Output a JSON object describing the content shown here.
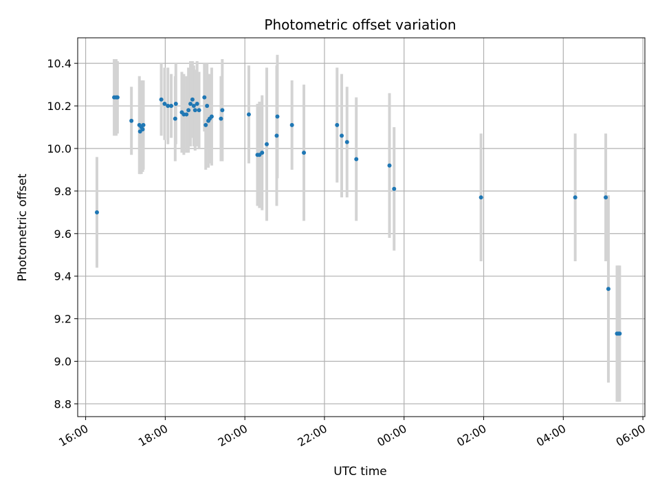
{
  "chart_data": {
    "type": "scatter",
    "title": "Photometric offset variation",
    "xlabel": "UTC time",
    "ylabel": "Photometric offset",
    "x_axis": {
      "min_hours": 15.8,
      "max_hours": 30.05,
      "ticks": [
        {
          "label": "16:00",
          "hours": 16
        },
        {
          "label": "18:00",
          "hours": 18
        },
        {
          "label": "20:00",
          "hours": 20
        },
        {
          "label": "22:00",
          "hours": 22
        },
        {
          "label": "00:00",
          "hours": 24
        },
        {
          "label": "02:00",
          "hours": 26
        },
        {
          "label": "04:00",
          "hours": 28
        },
        {
          "label": "06:00",
          "hours": 30
        }
      ]
    },
    "y_axis": {
      "min": 8.74,
      "max": 10.52,
      "ticks": [
        "8.8",
        "9.0",
        "9.2",
        "9.4",
        "9.6",
        "9.8",
        "10.0",
        "10.2",
        "10.4"
      ]
    },
    "grid": true,
    "point_color": "#1f77b4",
    "errorbar_color": "#d3d3d3",
    "points": [
      {
        "t": "16:17",
        "y": 9.7,
        "err": 0.26
      },
      {
        "t": "16:43",
        "y": 10.24,
        "err": 0.18
      },
      {
        "t": "16:46",
        "y": 10.24,
        "err": 0.18
      },
      {
        "t": "16:48",
        "y": 10.24,
        "err": 0.17
      },
      {
        "t": "17:09",
        "y": 10.13,
        "err": 0.16
      },
      {
        "t": "17:21",
        "y": 10.11,
        "err": 0.23
      },
      {
        "t": "17:22",
        "y": 10.08,
        "err": 0.2
      },
      {
        "t": "17:24",
        "y": 10.1,
        "err": 0.22
      },
      {
        "t": "17:26",
        "y": 10.09,
        "err": 0.2
      },
      {
        "t": "17:27",
        "y": 10.11,
        "err": 0.21
      },
      {
        "t": "17:54",
        "y": 10.23,
        "err": 0.17
      },
      {
        "t": "17:59",
        "y": 10.21,
        "err": 0.17
      },
      {
        "t": "18:04",
        "y": 10.2,
        "err": 0.18
      },
      {
        "t": "18:09",
        "y": 10.2,
        "err": 0.15
      },
      {
        "t": "18:15",
        "y": 10.14,
        "err": 0.2
      },
      {
        "t": "18:16",
        "y": 10.21,
        "err": 0.19
      },
      {
        "t": "18:25",
        "y": 10.17,
        "err": 0.19
      },
      {
        "t": "18:28",
        "y": 10.16,
        "err": 0.19
      },
      {
        "t": "18:32",
        "y": 10.16,
        "err": 0.18
      },
      {
        "t": "18:35",
        "y": 10.18,
        "err": 0.2
      },
      {
        "t": "18:38",
        "y": 10.21,
        "err": 0.2
      },
      {
        "t": "18:41",
        "y": 10.23,
        "err": 0.18
      },
      {
        "t": "18:43",
        "y": 10.2,
        "err": 0.19
      },
      {
        "t": "18:45",
        "y": 10.18,
        "err": 0.19
      },
      {
        "t": "18:48",
        "y": 10.21,
        "err": 0.2
      },
      {
        "t": "18:51",
        "y": 10.18,
        "err": 0.18
      },
      {
        "t": "18:59",
        "y": 10.24,
        "err": 0.16
      },
      {
        "t": "19:01",
        "y": 10.11,
        "err": 0.21
      },
      {
        "t": "19:03",
        "y": 10.2,
        "err": 0.2
      },
      {
        "t": "19:05",
        "y": 10.13,
        "err": 0.22
      },
      {
        "t": "19:07",
        "y": 10.14,
        "err": 0.21
      },
      {
        "t": "19:10",
        "y": 10.15,
        "err": 0.23
      },
      {
        "t": "19:24",
        "y": 10.14,
        "err": 0.2
      },
      {
        "t": "19:26",
        "y": 10.18,
        "err": 0.24
      },
      {
        "t": "20:06",
        "y": 10.16,
        "err": 0.23
      },
      {
        "t": "20:19",
        "y": 9.97,
        "err": 0.24
      },
      {
        "t": "20:22",
        "y": 9.97,
        "err": 0.25
      },
      {
        "t": "20:26",
        "y": 9.98,
        "err": 0.27
      },
      {
        "t": "20:33",
        "y": 10.02,
        "err": 0.36
      },
      {
        "t": "20:48",
        "y": 10.06,
        "err": 0.33
      },
      {
        "t": "20:49",
        "y": 10.15,
        "err": 0.29
      },
      {
        "t": "21:11",
        "y": 10.11,
        "err": 0.21
      },
      {
        "t": "21:29",
        "y": 9.98,
        "err": 0.32
      },
      {
        "t": "22:19",
        "y": 10.11,
        "err": 0.27
      },
      {
        "t": "22:26",
        "y": 10.06,
        "err": 0.29
      },
      {
        "t": "22:34",
        "y": 10.03,
        "err": 0.26
      },
      {
        "t": "22:48",
        "y": 9.95,
        "err": 0.29
      },
      {
        "t": "23:38",
        "y": 9.92,
        "err": 0.34
      },
      {
        "t": "23:45",
        "y": 9.81,
        "err": 0.29
      },
      {
        "t": "01:56",
        "y": 9.77,
        "err": 0.3
      },
      {
        "t": "04:18",
        "y": 9.77,
        "err": 0.3
      },
      {
        "t": "05:04",
        "y": 9.77,
        "err": 0.3
      },
      {
        "t": "05:08",
        "y": 9.34,
        "err": 0.44
      },
      {
        "t": "05:21",
        "y": 9.13,
        "err": 0.32
      },
      {
        "t": "05:23",
        "y": 9.13,
        "err": 0.32
      },
      {
        "t": "05:25",
        "y": 9.13,
        "err": 0.32
      }
    ]
  }
}
